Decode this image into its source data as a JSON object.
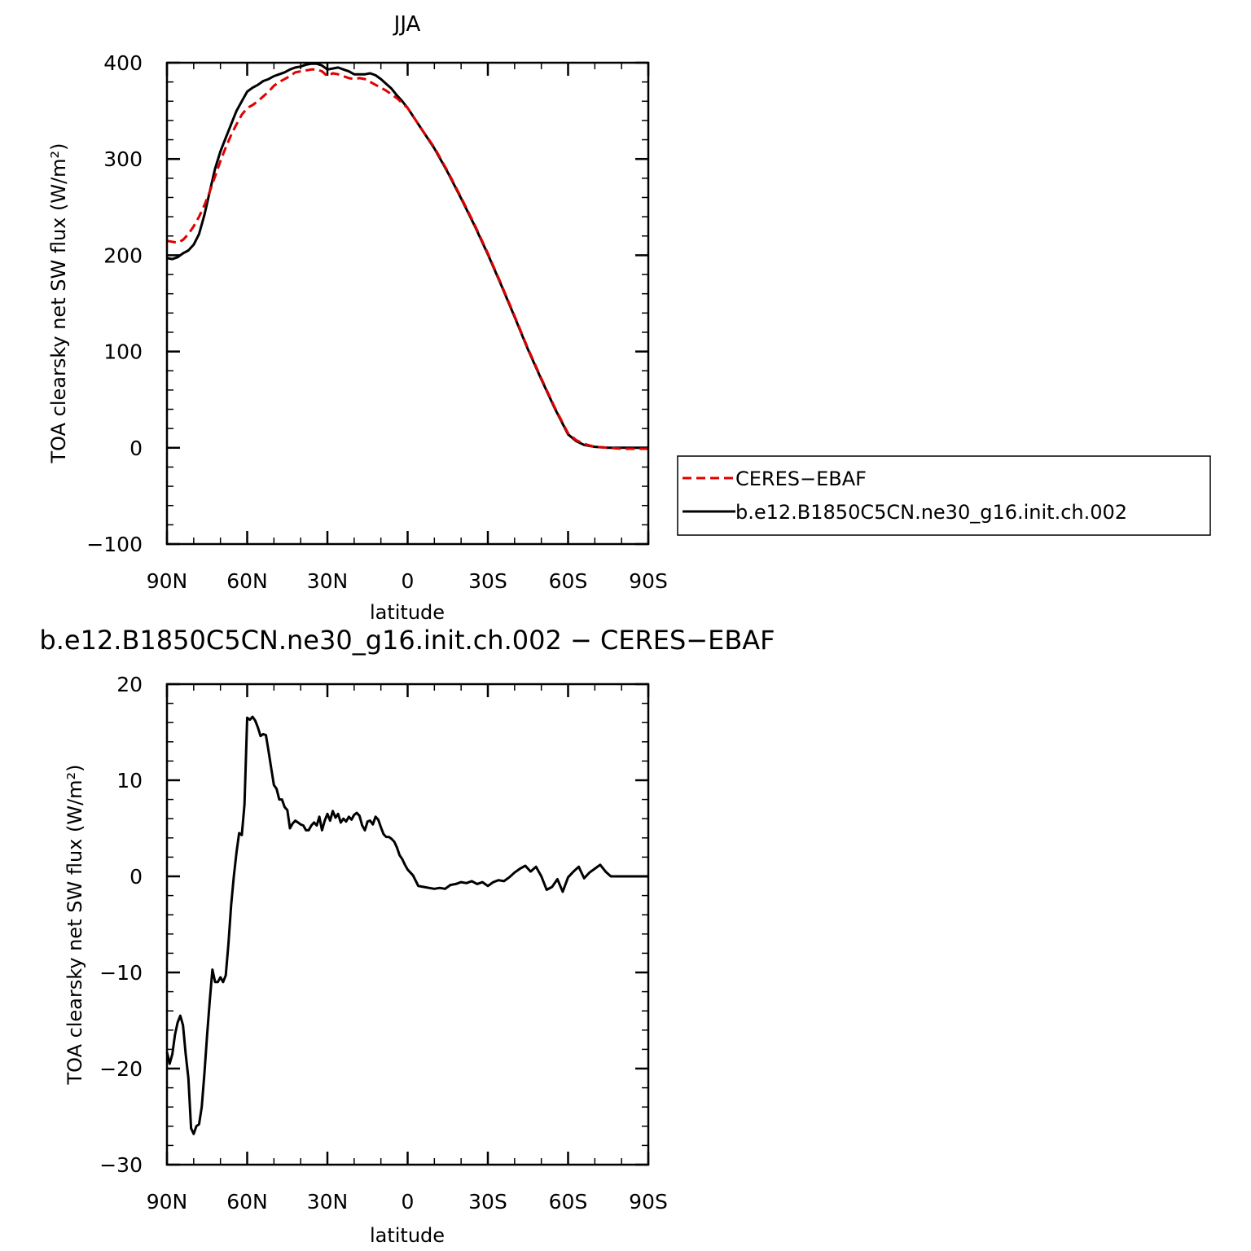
{
  "colors": {
    "model": "#000000",
    "obs": "#e00000",
    "frame": "#000000"
  },
  "chart_data": [
    {
      "type": "line",
      "title": "JJA",
      "xlabel": "latitude",
      "ylabel": "TOA clearsky net SW flux (W/m²)",
      "xlim": [
        90,
        -90
      ],
      "ylim": [
        -100,
        400
      ],
      "xticks": [
        90,
        60,
        30,
        0,
        -30,
        -60,
        -90
      ],
      "xtick_labels": [
        "90N",
        "60N",
        "30N",
        "0",
        "30S",
        "60S",
        "90S"
      ],
      "yticks": [
        -100,
        0,
        100,
        200,
        300,
        400
      ],
      "ytick_labels": [
        "−100",
        "0",
        "100",
        "200",
        "300",
        "400"
      ],
      "grid": false,
      "legend_position": "right",
      "series": [
        {
          "name": "CERES−EBAF",
          "color": "#e00000",
          "style": "dashed",
          "x": [
            90,
            88,
            86,
            84,
            82,
            80,
            78,
            76,
            74,
            72,
            70,
            68,
            66,
            64,
            62,
            60,
            58,
            56,
            54,
            52,
            50,
            48,
            46,
            44,
            42,
            40,
            38,
            36,
            34,
            32,
            30,
            28,
            26,
            24,
            22,
            20,
            18,
            16,
            14,
            12,
            10,
            8,
            6,
            4,
            2,
            0,
            -5,
            -10,
            -15,
            -20,
            -25,
            -30,
            -35,
            -40,
            -45,
            -50,
            -55,
            -60,
            -63,
            -66,
            -70,
            -75,
            -80,
            -85,
            -90
          ],
          "y": [
            215,
            214,
            213,
            216,
            222,
            230,
            240,
            252,
            266,
            282,
            298,
            312,
            325,
            336,
            346,
            353,
            356,
            360,
            365,
            370,
            376,
            380,
            383,
            386,
            390,
            391,
            392,
            393,
            393,
            391,
            386,
            389,
            388,
            386,
            384,
            383,
            384,
            383,
            380,
            377,
            374,
            371,
            367,
            363,
            358,
            353,
            332,
            312,
            287,
            260,
            232,
            202,
            170,
            137,
            103,
            72,
            42,
            15,
            8,
            4,
            1,
            0,
            -1,
            -1,
            -1
          ]
        },
        {
          "name": "b.e12.B1850C5CN.ne30_g16.init.ch.002",
          "color": "#000000",
          "style": "solid",
          "x": [
            90,
            88,
            86,
            84,
            82,
            80,
            78,
            76,
            74,
            72,
            70,
            68,
            66,
            64,
            62,
            60,
            58,
            56,
            54,
            52,
            50,
            48,
            46,
            44,
            42,
            40,
            38,
            36,
            34,
            32,
            30,
            28,
            26,
            24,
            22,
            20,
            18,
            16,
            14,
            12,
            10,
            8,
            6,
            4,
            2,
            0,
            -5,
            -10,
            -15,
            -20,
            -25,
            -30,
            -35,
            -40,
            -45,
            -50,
            -55,
            -60,
            -63,
            -66,
            -70,
            -75,
            -80,
            -85,
            -90
          ],
          "y": [
            197,
            196,
            198,
            202,
            205,
            211,
            222,
            242,
            266,
            290,
            308,
            322,
            336,
            350,
            360,
            370,
            374,
            377,
            381,
            383,
            386,
            388,
            390,
            393,
            395,
            396,
            398,
            399,
            399,
            397,
            393,
            394,
            395,
            393,
            391,
            388,
            388,
            388,
            389,
            387,
            383,
            378,
            373,
            366,
            360,
            353,
            332,
            311,
            286,
            259,
            231,
            201,
            169,
            136,
            102,
            71,
            41,
            14,
            7,
            3,
            1,
            0,
            0,
            0,
            0
          ]
        }
      ],
      "legend": [
        {
          "label": "CERES−EBAF",
          "style": "dashed"
        },
        {
          "label": "b.e12.B1850C5CN.ne30_g16.init.ch.002",
          "style": "solid"
        }
      ]
    },
    {
      "type": "line",
      "title": "b.e12.B1850C5CN.ne30_g16.init.ch.002 − CERES−EBAF",
      "xlabel": "latitude",
      "ylabel": "TOA clearsky net SW flux (W/m²)",
      "xlim": [
        90,
        -90
      ],
      "ylim": [
        -30,
        20
      ],
      "xticks": [
        90,
        60,
        30,
        0,
        -30,
        -60,
        -90
      ],
      "xtick_labels": [
        "90N",
        "60N",
        "30N",
        "0",
        "30S",
        "60S",
        "90S"
      ],
      "yticks": [
        -30,
        -20,
        -10,
        0,
        10,
        20
      ],
      "ytick_labels": [
        "−30",
        "−20",
        "−10",
        "0",
        "10",
        "20"
      ],
      "grid": false,
      "series": [
        {
          "color": "#000000",
          "style": "solid",
          "x": [
            90,
            89,
            88,
            87,
            86,
            85,
            84,
            83,
            82,
            81,
            80,
            79,
            78,
            77,
            76,
            75,
            74,
            73,
            72,
            71,
            70,
            69,
            68,
            67,
            66,
            65,
            64,
            63,
            62,
            61,
            60,
            59,
            58,
            57,
            56,
            55,
            54,
            53,
            52,
            51,
            50,
            49,
            48,
            47,
            46,
            45,
            44,
            43,
            42,
            41,
            40,
            39,
            38,
            37,
            36,
            35,
            34,
            33,
            32,
            31,
            30,
            29,
            28,
            27,
            26,
            25,
            24,
            23,
            22,
            21,
            20,
            19,
            18,
            17,
            16,
            15,
            14,
            13,
            12,
            11,
            10,
            9,
            8,
            7,
            6,
            5,
            4,
            3,
            2,
            1,
            0,
            -2,
            -4,
            -6,
            -8,
            -10,
            -12,
            -14,
            -16,
            -18,
            -20,
            -22,
            -24,
            -26,
            -28,
            -30,
            -32,
            -34,
            -36,
            -38,
            -40,
            -42,
            -44,
            -46,
            -48,
            -50,
            -52,
            -54,
            -56,
            -58,
            -60,
            -62,
            -64,
            -66,
            -68,
            -70,
            -72,
            -74,
            -76,
            -78,
            -80,
            -82,
            -84,
            -86,
            -88,
            -90
          ],
          "y": [
            -18.3,
            -19.5,
            -18.5,
            -16.5,
            -15.2,
            -14.5,
            -15.5,
            -18.5,
            -21,
            -26.2,
            -26.8,
            -26,
            -25.8,
            -24,
            -20.5,
            -16.5,
            -13,
            -9.7,
            -11,
            -11,
            -10.5,
            -11,
            -10.3,
            -7,
            -3,
            0,
            2.5,
            4.5,
            4.3,
            7.5,
            16.5,
            16.3,
            16.6,
            16.2,
            15.5,
            14.6,
            14.8,
            14.7,
            13,
            11.2,
            9.5,
            9.1,
            8,
            8,
            7.2,
            6.9,
            5,
            5.5,
            5.8,
            5.6,
            5.4,
            5.3,
            4.8,
            4.8,
            5.3,
            5.6,
            5.3,
            6.2,
            4.8,
            5.8,
            6.5,
            5.8,
            6.8,
            6.1,
            6.5,
            5.6,
            6,
            5.7,
            6.2,
            5.9,
            6.4,
            6.6,
            6.3,
            5.3,
            4.8,
            5.7,
            5.8,
            5.4,
            6.2,
            5.9,
            5.1,
            4.4,
            4.1,
            4.1,
            3.9,
            3.6,
            3,
            2.2,
            1.8,
            1.2,
            0.7,
            0.1,
            -1,
            -1.1,
            -1.2,
            -1.3,
            -1.2,
            -1.3,
            -0.9,
            -0.8,
            -0.6,
            -0.7,
            -0.5,
            -0.8,
            -0.6,
            -1,
            -0.6,
            -0.4,
            -0.5,
            -0.1,
            0.4,
            0.8,
            1.1,
            0.5,
            1,
            0,
            -1.4,
            -1.1,
            -0.3,
            -1.6,
            -0.1,
            0.5,
            1,
            -0.2,
            0.4,
            0.8,
            1.2,
            0.5,
            0,
            0,
            0,
            0,
            0,
            0,
            0,
            0
          ]
        }
      ]
    }
  ]
}
